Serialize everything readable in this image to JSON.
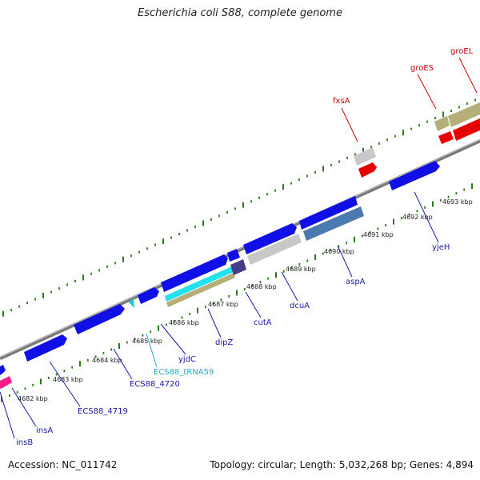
{
  "title": "Escherichia coli S88, complete genome",
  "footer": {
    "accession": "Accession: NC_011742",
    "summary": "Topology: circular; Length: 5,032,268 bp; Genes: 4,894"
  },
  "colors": {
    "background": "#ffffff",
    "backbone": "#8c8c8c",
    "tick": "#2a7a18",
    "blue_gene": "#1010e6",
    "red_gene": "#e60000",
    "gray_gene": "#c8c8c8",
    "olive_gene": "#b5ae78",
    "steel_gene": "#4a7ab0",
    "cyan_gene": "#22c7d8",
    "purple_gene": "#4a3a8a",
    "pink_gene": "#ff1a8c",
    "label_blue": "#1a1aa8",
    "label_red": "#cc0000",
    "label_cyan": "#2aaad0"
  },
  "kbp_labels": [
    "4682 kbp",
    "4683 kbp",
    "4684 kbp",
    "4685 kbp",
    "4686 kbp",
    "4687 kbp",
    "4688 kbp",
    "4689 kbp",
    "4690 kbp",
    "4691 kbp",
    "4692 kbp",
    "4693 kbp"
  ],
  "gene_labels": [
    {
      "text": "insB",
      "color": "label_blue"
    },
    {
      "text": "insA",
      "color": "label_blue"
    },
    {
      "text": "ECS88_4719",
      "color": "label_blue"
    },
    {
      "text": "ECS88_4720",
      "color": "label_blue"
    },
    {
      "text": "ECS88_tRNA59",
      "color": "label_cyan"
    },
    {
      "text": "yjdC",
      "color": "label_blue"
    },
    {
      "text": "dipZ",
      "color": "label_blue"
    },
    {
      "text": "cutA",
      "color": "label_blue"
    },
    {
      "text": "dcuA",
      "color": "label_blue"
    },
    {
      "text": "aspA",
      "color": "label_blue"
    },
    {
      "text": "yjeH",
      "color": "label_blue"
    },
    {
      "text": "fxsA",
      "color": "label_red"
    },
    {
      "text": "groES",
      "color": "label_red"
    },
    {
      "text": "groEL",
      "color": "label_red"
    }
  ]
}
